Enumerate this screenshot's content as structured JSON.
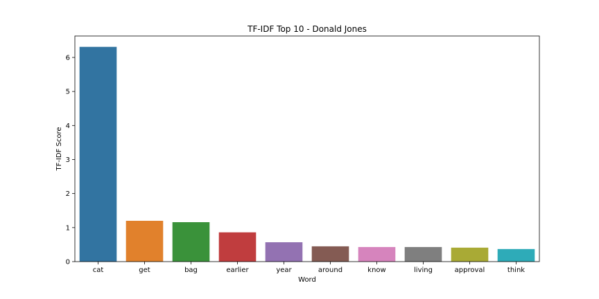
{
  "chart_data": {
    "type": "bar",
    "title": "TF-IDF Top 10 - Donald Jones",
    "xlabel": "Word",
    "ylabel": "TF-IDF Score",
    "categories": [
      "cat",
      "get",
      "bag",
      "earlier",
      "year",
      "around",
      "know",
      "living",
      "approval",
      "think"
    ],
    "values": [
      6.31,
      1.2,
      1.16,
      0.86,
      0.57,
      0.45,
      0.43,
      0.43,
      0.41,
      0.37
    ],
    "colors": [
      "#3274a1",
      "#e1812c",
      "#3a923a",
      "#c03d3e",
      "#9372b2",
      "#845b53",
      "#d684bd",
      "#7f7f7f",
      "#a9aa35",
      "#2eabb8"
    ],
    "ylim": [
      0,
      6.63
    ],
    "yticks": [
      "0",
      "1",
      "2",
      "3",
      "4",
      "5",
      "6"
    ],
    "grid": false,
    "legend": "none"
  }
}
